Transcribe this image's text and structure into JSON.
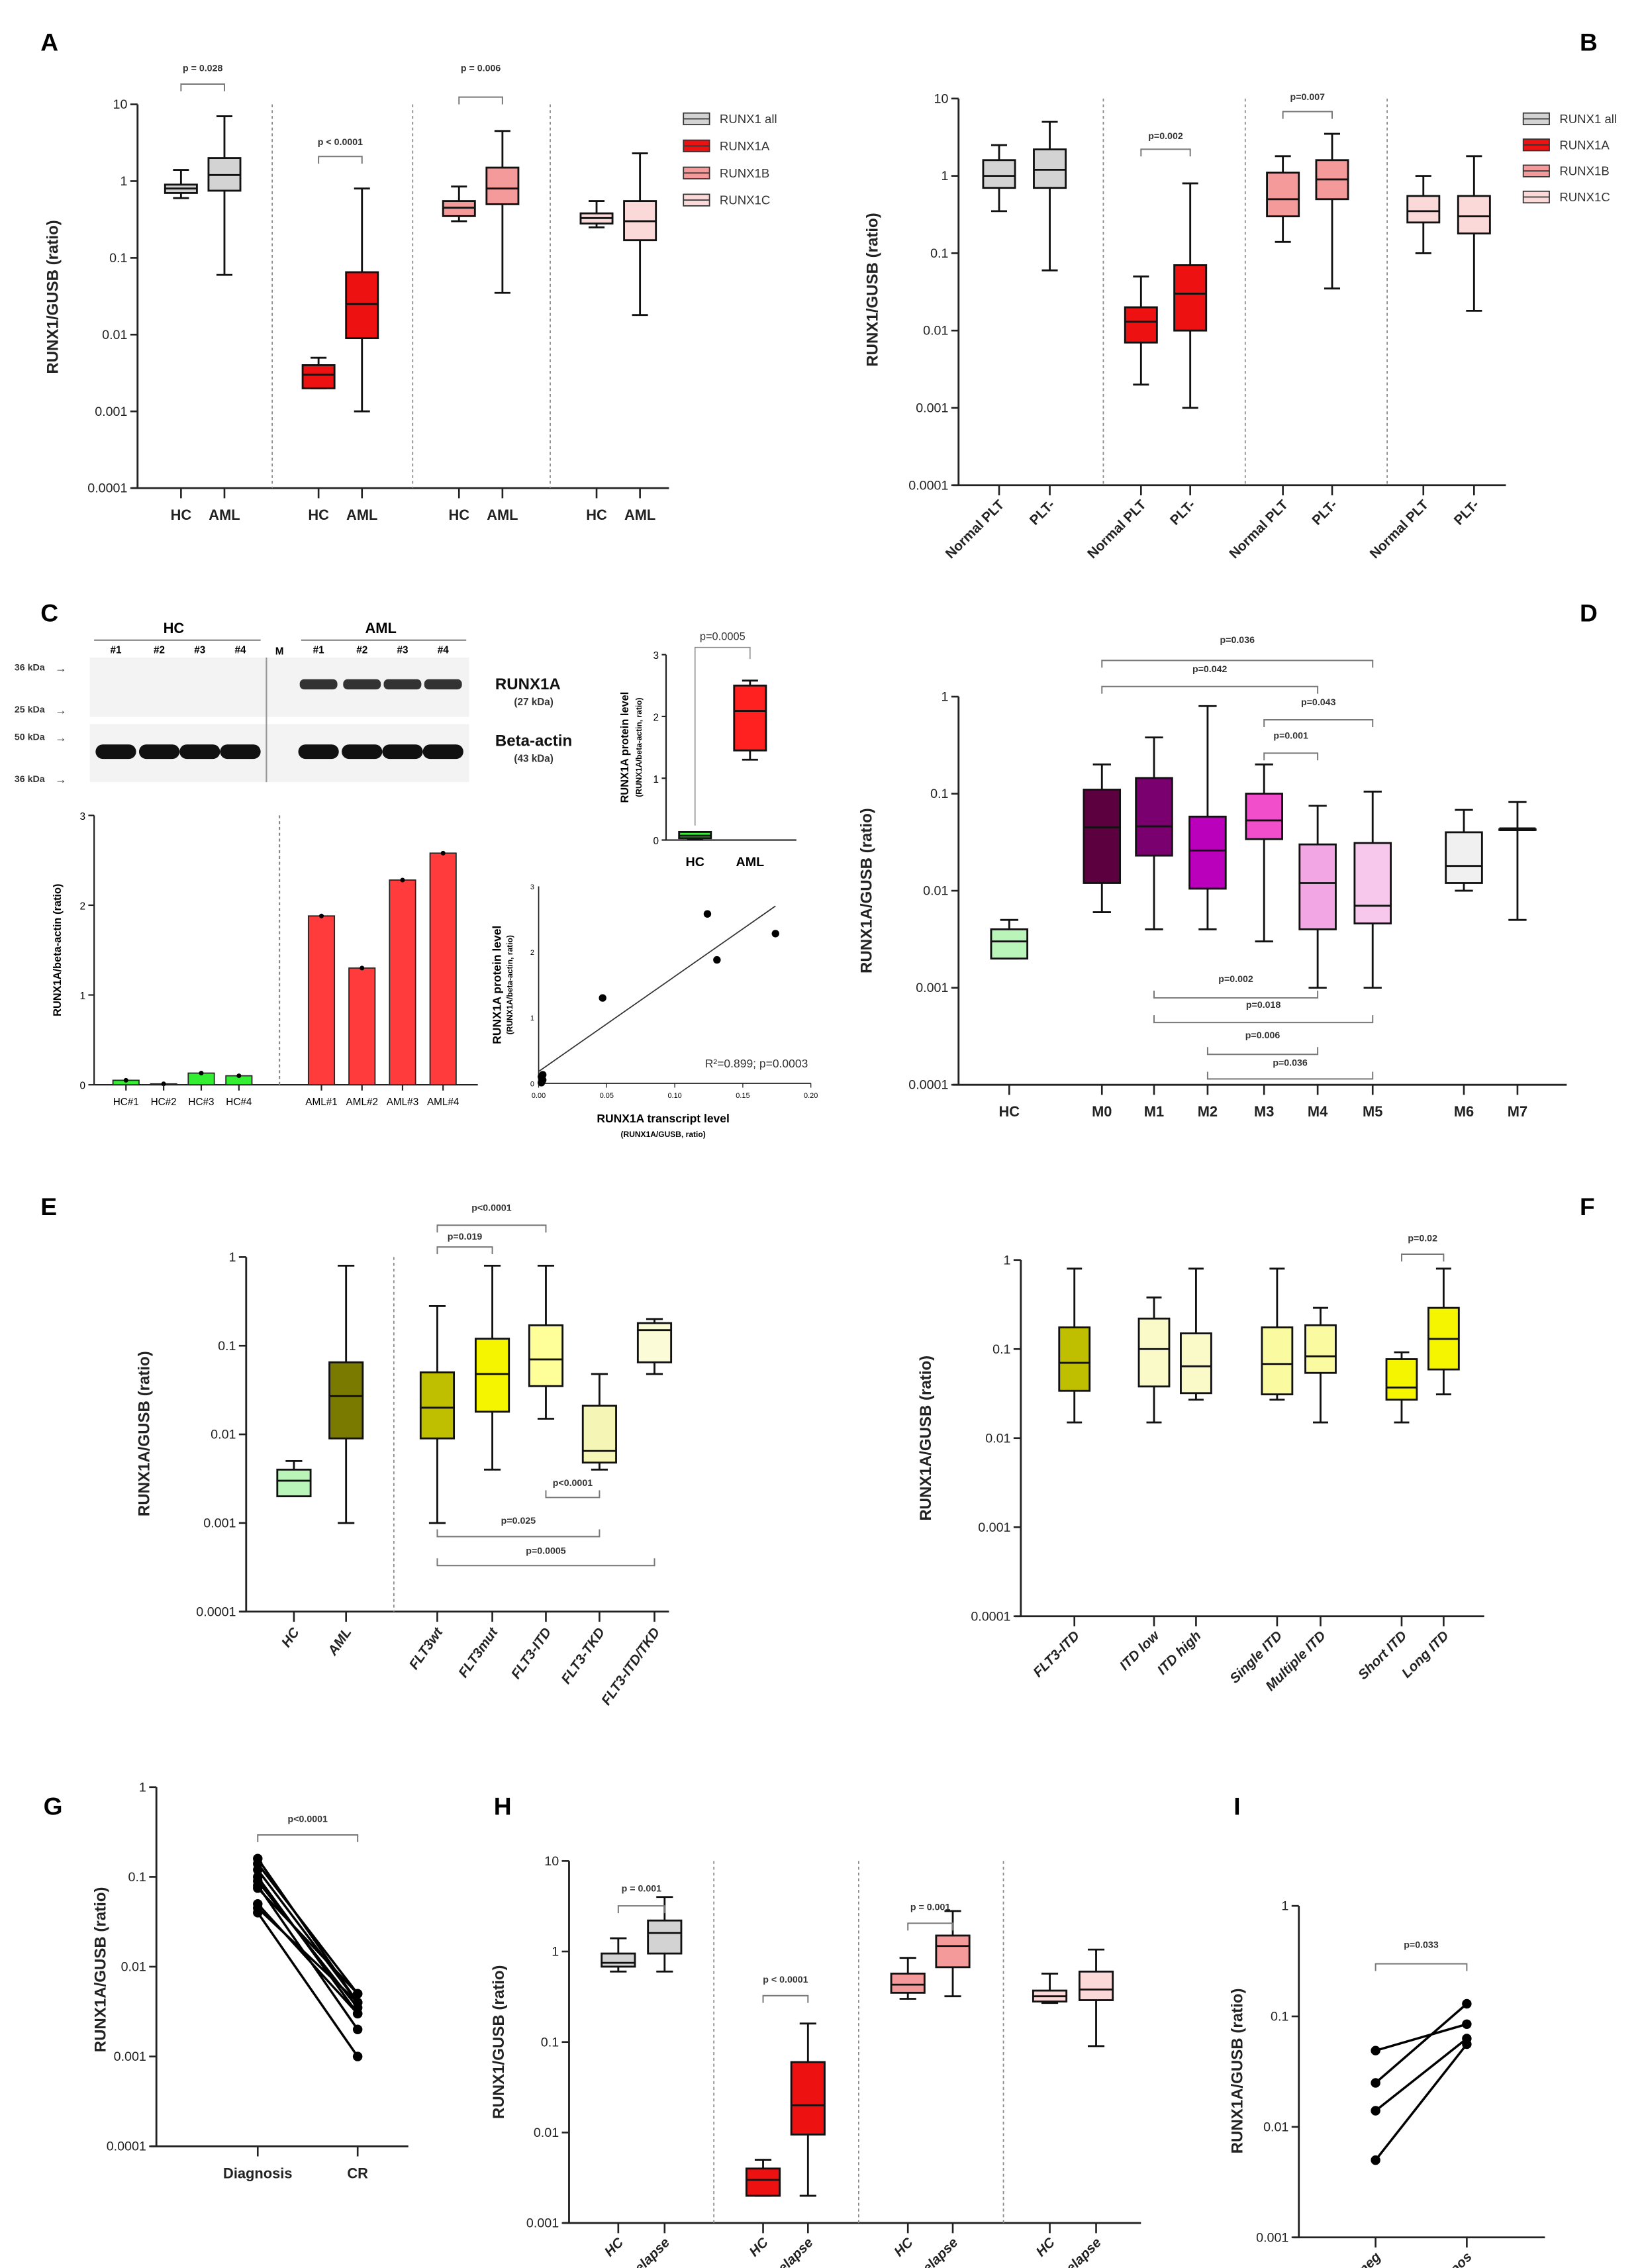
{
  "panel_letters": [
    "A",
    "B",
    "C",
    "D",
    "E",
    "F",
    "G",
    "H",
    "I"
  ],
  "chart_data": [
    {
      "id": "A",
      "type": "box",
      "scale": "log",
      "ylabel": "RUNX1/GUSB (ratio)",
      "yticks": [
        "10",
        "1",
        "0.1",
        "0.01",
        "0.001",
        "0.0001"
      ],
      "legend": [
        {
          "label": "RUNX1 all",
          "color": "#d3d3d3"
        },
        {
          "label": "RUNX1A",
          "color": "#ee1111"
        },
        {
          "label": "RUNX1B",
          "color": "#f59a9a"
        },
        {
          "label": "RUNX1C",
          "color": "#fbd9d9"
        }
      ],
      "categories": [
        "HC",
        "AML",
        "HC",
        "AML",
        "HC",
        "AML",
        "HC",
        "AML"
      ],
      "colors": [
        "#d3d3d3",
        "#d3d3d3",
        "#ee1111",
        "#ee1111",
        "#f59a9a",
        "#f59a9a",
        "#fbd9d9",
        "#fbd9d9"
      ],
      "boxes": [
        [
          0.6,
          0.7,
          0.8,
          0.9,
          1.4
        ],
        [
          0.06,
          0.75,
          1.2,
          2.0,
          7
        ],
        [
          0.002,
          0.002,
          0.003,
          0.004,
          0.005
        ],
        [
          0.001,
          0.009,
          0.025,
          0.065,
          0.8
        ],
        [
          0.3,
          0.35,
          0.45,
          0.55,
          0.85
        ],
        [
          0.035,
          0.5,
          0.8,
          1.5,
          4.5
        ],
        [
          0.25,
          0.28,
          0.33,
          0.38,
          0.55
        ],
        [
          0.018,
          0.17,
          0.3,
          0.55,
          2.3
        ]
      ],
      "comparisons": [
        {
          "pair": [
            0,
            1
          ],
          "label": "p = 0.028"
        },
        {
          "pair": [
            2,
            3
          ],
          "label": "p < 0.0001"
        },
        {
          "pair": [
            4,
            5
          ],
          "label": "p = 0.006"
        }
      ]
    },
    {
      "id": "B",
      "type": "box",
      "scale": "log",
      "ylabel": "RUNX1/GUSB (ratio)",
      "yticks": [
        "10",
        "1",
        "0.1",
        "0.01",
        "0.001",
        "0.0001"
      ],
      "legend": [
        {
          "label": "RUNX1 all",
          "color": "#d3d3d3"
        },
        {
          "label": "RUNX1A",
          "color": "#ee1111"
        },
        {
          "label": "RUNX1B",
          "color": "#f59a9a"
        },
        {
          "label": "RUNX1C",
          "color": "#fbd9d9"
        }
      ],
      "categories": [
        "Normal PLT",
        "PLT-",
        "Normal PLT",
        "PLT-",
        "Normal PLT",
        "PLT-",
        "Normal PLT",
        "PLT-"
      ],
      "colors": [
        "#d3d3d3",
        "#d3d3d3",
        "#ee1111",
        "#ee1111",
        "#f59a9a",
        "#f59a9a",
        "#fbd9d9",
        "#fbd9d9"
      ],
      "boxes": [
        [
          0.35,
          0.7,
          1.0,
          1.6,
          2.5
        ],
        [
          0.06,
          0.7,
          1.2,
          2.2,
          5
        ],
        [
          0.002,
          0.007,
          0.013,
          0.02,
          0.05
        ],
        [
          0.001,
          0.01,
          0.03,
          0.07,
          0.8
        ],
        [
          0.14,
          0.3,
          0.5,
          1.1,
          1.8
        ],
        [
          0.035,
          0.5,
          0.9,
          1.6,
          3.5
        ],
        [
          0.1,
          0.25,
          0.35,
          0.55,
          1.0
        ],
        [
          0.018,
          0.18,
          0.3,
          0.55,
          1.8
        ]
      ],
      "comparisons": [
        {
          "pair": [
            2,
            3
          ],
          "label": "p=0.002"
        },
        {
          "pair": [
            4,
            5
          ],
          "label": "p=0.007"
        }
      ]
    },
    {
      "id": "C-blot",
      "type": "western-blot",
      "group_labels": [
        "HC",
        "AML"
      ],
      "marker_label": "M",
      "lane_labels": [
        "#1",
        "#2",
        "#3",
        "#4",
        "#1",
        "#2",
        "#3",
        "#4"
      ],
      "kda_labels": [
        "36 kDa",
        "25 kDa",
        "50 kDa",
        "36 kDa"
      ],
      "band_labels": [
        {
          "name": "RUNX1A",
          "size": "(27 kDa)"
        },
        {
          "name": "Beta-actin",
          "size": "(43 kDa)"
        }
      ]
    },
    {
      "id": "C-bar",
      "type": "bar",
      "ylabel": "RUNX1A/beta-actin (ratio)",
      "yticks": [
        "0",
        "1",
        "2",
        "3"
      ],
      "ylim": [
        0,
        3
      ],
      "categories": [
        "HC#1",
        "HC#2",
        "HC#3",
        "HC#4",
        "AML#1",
        "AML#2",
        "AML#3",
        "AML#4"
      ],
      "values": [
        0.05,
        0.01,
        0.13,
        0.1,
        1.88,
        1.3,
        2.28,
        2.58
      ],
      "colors": [
        "#33ee33",
        "#33ee33",
        "#33ee33",
        "#33ee33",
        "#ff3b3b",
        "#ff3b3b",
        "#ff3b3b",
        "#ff3b3b"
      ]
    },
    {
      "id": "C-inset",
      "type": "box",
      "ylabel": "RUNX1A protein level",
      "ylabel2": "(RUNX1A/beta-actin, ratio)",
      "yticks": [
        "0",
        "1",
        "2",
        "3"
      ],
      "ylim": [
        0,
        3
      ],
      "categories": [
        "HC",
        "AML"
      ],
      "colors": [
        "#33ee33",
        "#ff2020"
      ],
      "boxes": [
        [
          0.01,
          0.03,
          0.07,
          0.13,
          0.13
        ],
        [
          1.3,
          1.45,
          2.09,
          2.5,
          2.58
        ]
      ],
      "comparisons": [
        {
          "pair": [
            0,
            1
          ],
          "label": "p=0.0005"
        }
      ]
    },
    {
      "id": "C-scatter",
      "type": "scatter",
      "ylabel": "RUNX1A protein level",
      "ylabel2": "(RUNX1A/beta-actin, ratio)",
      "xlabel": "RUNX1A transcript level",
      "xlabel2": "(RUNX1A/GUSB, ratio)",
      "xticks": [
        "0.00",
        "0.05",
        "0.10",
        "0.15",
        "0.20"
      ],
      "yticks": [
        "0",
        "1",
        "2",
        "3"
      ],
      "xlim": [
        0,
        0.2
      ],
      "ylim": [
        0,
        3
      ],
      "points": [
        [
          0.002,
          0.1
        ],
        [
          0.003,
          0.05
        ],
        [
          0.002,
          0.01
        ],
        [
          0.003,
          0.13
        ],
        [
          0.047,
          1.3
        ],
        [
          0.124,
          2.58
        ],
        [
          0.131,
          1.88
        ],
        [
          0.174,
          2.28
        ]
      ],
      "fit": [
        [
          0,
          0.18
        ],
        [
          0.174,
          2.7
        ]
      ],
      "annotation": "R²=0.899; p=0.0003"
    },
    {
      "id": "D",
      "type": "box",
      "scale": "log",
      "ylabel": "RUNX1A/GUSB (ratio)",
      "yticks": [
        "1",
        "0.1",
        "0.01",
        "0.001",
        "0.0001"
      ],
      "categories": [
        "HC",
        "M0",
        "M1",
        "M2",
        "M3",
        "M4",
        "M5",
        "M6",
        "M7"
      ],
      "colors": [
        "#b9f5b9",
        "#5c0040",
        "#7a0070",
        "#bb00bb",
        "#f04ecb",
        "#f3a6e4",
        "#f7c8ec",
        "#f0f0f0",
        "#ffffff"
      ],
      "boxes": [
        [
          0.002,
          0.002,
          0.003,
          0.004,
          0.005
        ],
        [
          0.006,
          0.012,
          0.045,
          0.11,
          0.2
        ],
        [
          0.004,
          0.023,
          0.046,
          0.145,
          0.38
        ],
        [
          0.004,
          0.0105,
          0.026,
          0.058,
          0.8
        ],
        [
          0.003,
          0.034,
          0.053,
          0.1,
          0.2
        ],
        [
          0.001,
          0.004,
          0.012,
          0.03,
          0.075
        ],
        [
          0.001,
          0.0046,
          0.007,
          0.031,
          0.105
        ],
        [
          0.01,
          0.012,
          0.018,
          0.04,
          0.068
        ],
        [
          0.005,
          0.043,
          0.043,
          0.043,
          0.082
        ]
      ],
      "comparisons": [
        {
          "pair": [
            1,
            6
          ],
          "label": "p=0.036"
        },
        {
          "pair": [
            1,
            5
          ],
          "label": "p=0.042"
        },
        {
          "pair": [
            4,
            6
          ],
          "label": "p=0.043"
        },
        {
          "pair": [
            4,
            5
          ],
          "label": "p=0.001"
        },
        {
          "pair": [
            2,
            5
          ],
          "label": "p=0.002"
        },
        {
          "pair": [
            2,
            6
          ],
          "label": "p=0.018"
        },
        {
          "pair": [
            3,
            5
          ],
          "label": "p=0.006"
        },
        {
          "pair": [
            3,
            6
          ],
          "label": "p=0.036"
        }
      ]
    },
    {
      "id": "E",
      "type": "box",
      "scale": "log",
      "ylabel": "RUNX1A/GUSB (ratio)",
      "yticks": [
        "1",
        "0.1",
        "0.01",
        "0.001",
        "0.0001"
      ],
      "categories": [
        "HC",
        "AML",
        "FLT3wt",
        "FLT3mut",
        "FLT3-ITD",
        "FLT3-TKD",
        "FLT3-ITD/TKD"
      ],
      "colors": [
        "#b9f5b9",
        "#7a7a00",
        "#bfbf00",
        "#f5f500",
        "#ffff99",
        "#f5f5b5",
        "#fbfbd8"
      ],
      "boxes": [
        [
          0.002,
          0.002,
          0.003,
          0.004,
          0.005
        ],
        [
          0.001,
          0.009,
          0.027,
          0.065,
          0.8
        ],
        [
          0.001,
          0.009,
          0.02,
          0.05,
          0.28
        ],
        [
          0.004,
          0.018,
          0.048,
          0.12,
          0.8
        ],
        [
          0.015,
          0.035,
          0.07,
          0.17,
          0.8
        ],
        [
          0.004,
          0.0048,
          0.0065,
          0.021,
          0.048
        ],
        [
          0.048,
          0.065,
          0.15,
          0.18,
          0.2
        ]
      ],
      "comparisons": [
        {
          "pair": [
            2,
            4
          ],
          "label": "p<0.0001"
        },
        {
          "pair": [
            2,
            3
          ],
          "label": "p=0.019"
        },
        {
          "pair": [
            4,
            5
          ],
          "label": "p<0.0001"
        },
        {
          "pair": [
            2,
            5
          ],
          "label": "p=0.025"
        },
        {
          "pair": [
            2,
            6
          ],
          "label": "p=0.0005"
        }
      ]
    },
    {
      "id": "F",
      "type": "box",
      "scale": "log",
      "ylabel": "RUNX1A/GUSB (ratio)",
      "yticks": [
        "1",
        "0.1",
        "0.01",
        "0.001",
        "0.0001"
      ],
      "categories": [
        "FLT3-ITD",
        "ITD low",
        "ITD high",
        "Single ITD",
        "Multiple ITD",
        "Short ITD",
        "Long ITD"
      ],
      "colors": [
        "#bfbf00",
        "#fafac8",
        "#fafac8",
        "#fafaa0",
        "#fafaa0",
        "#f5f500",
        "#f5f500"
      ],
      "boxes": [
        [
          0.015,
          0.034,
          0.07,
          0.175,
          0.8
        ],
        [
          0.015,
          0.038,
          0.1,
          0.22,
          0.38
        ],
        [
          0.027,
          0.032,
          0.064,
          0.15,
          0.8
        ],
        [
          0.027,
          0.031,
          0.068,
          0.175,
          0.8
        ],
        [
          0.015,
          0.054,
          0.083,
          0.185,
          0.29
        ],
        [
          0.015,
          0.027,
          0.037,
          0.077,
          0.092
        ],
        [
          0.031,
          0.059,
          0.13,
          0.29,
          0.8
        ]
      ],
      "comparisons": [
        {
          "pair": [
            5,
            6
          ],
          "label": "p=0.02"
        }
      ]
    },
    {
      "id": "G",
      "type": "paired-line",
      "scale": "log",
      "ylabel": "RUNX1A/GUSB (ratio)",
      "yticks": [
        "1",
        "0.1",
        "0.01",
        "0.001",
        "0.0001"
      ],
      "categories": [
        "Diagnosis",
        "CR"
      ],
      "pairs": [
        [
          0.16,
          0.004
        ],
        [
          0.14,
          0.005
        ],
        [
          0.12,
          0.004
        ],
        [
          0.1,
          0.003
        ],
        [
          0.09,
          0.0035
        ],
        [
          0.08,
          0.002
        ],
        [
          0.075,
          0.005
        ],
        [
          0.05,
          0.003
        ],
        [
          0.045,
          0.004
        ],
        [
          0.04,
          0.001
        ]
      ],
      "comparisons": [
        {
          "pair": [
            0,
            1
          ],
          "label": "p<0.0001"
        }
      ]
    },
    {
      "id": "H",
      "type": "box",
      "scale": "log",
      "ylabel": "RUNX1/GUSB (ratio)",
      "yticks": [
        "10",
        "1",
        "0.1",
        "0.01",
        "0.001"
      ],
      "categories": [
        "HC",
        "Relapse",
        "HC",
        "Relapse",
        "HC",
        "Relapse",
        "HC",
        "Relapse"
      ],
      "colors": [
        "#d3d3d3",
        "#d3d3d3",
        "#ee1111",
        "#ee1111",
        "#f59a9a",
        "#f59a9a",
        "#fbd9d9",
        "#fbd9d9"
      ],
      "boxes": [
        [
          0.6,
          0.68,
          0.75,
          0.95,
          1.4
        ],
        [
          0.6,
          0.95,
          1.6,
          2.2,
          4
        ],
        [
          0.002,
          0.002,
          0.003,
          0.004,
          0.005
        ],
        [
          0.002,
          0.0095,
          0.02,
          0.06,
          0.16
        ],
        [
          0.3,
          0.35,
          0.43,
          0.57,
          0.85
        ],
        [
          0.32,
          0.67,
          1.15,
          1.5,
          2.8
        ],
        [
          0.27,
          0.28,
          0.32,
          0.37,
          0.57
        ],
        [
          0.09,
          0.29,
          0.38,
          0.6,
          1.05
        ]
      ],
      "comparisons": [
        {
          "pair": [
            0,
            1
          ],
          "label": "p = 0.001"
        },
        {
          "pair": [
            2,
            3
          ],
          "label": "p < 0.0001"
        },
        {
          "pair": [
            4,
            5
          ],
          "label": "p = 0.001"
        }
      ]
    },
    {
      "id": "I",
      "type": "paired-line",
      "scale": "log",
      "ylabel": "RUNX1A/GUSB (ratio)",
      "yticks": [
        "1",
        "0.1",
        "0.01",
        "0.001"
      ],
      "categories": [
        "Diagnosis - ITD neg",
        "Relapse - ITD pos"
      ],
      "pairs": [
        [
          0.049,
          0.085
        ],
        [
          0.025,
          0.13
        ],
        [
          0.014,
          0.063
        ],
        [
          0.005,
          0.056
        ]
      ],
      "comparisons": [
        {
          "pair": [
            0,
            1
          ],
          "label": "p=0.033"
        }
      ]
    }
  ]
}
